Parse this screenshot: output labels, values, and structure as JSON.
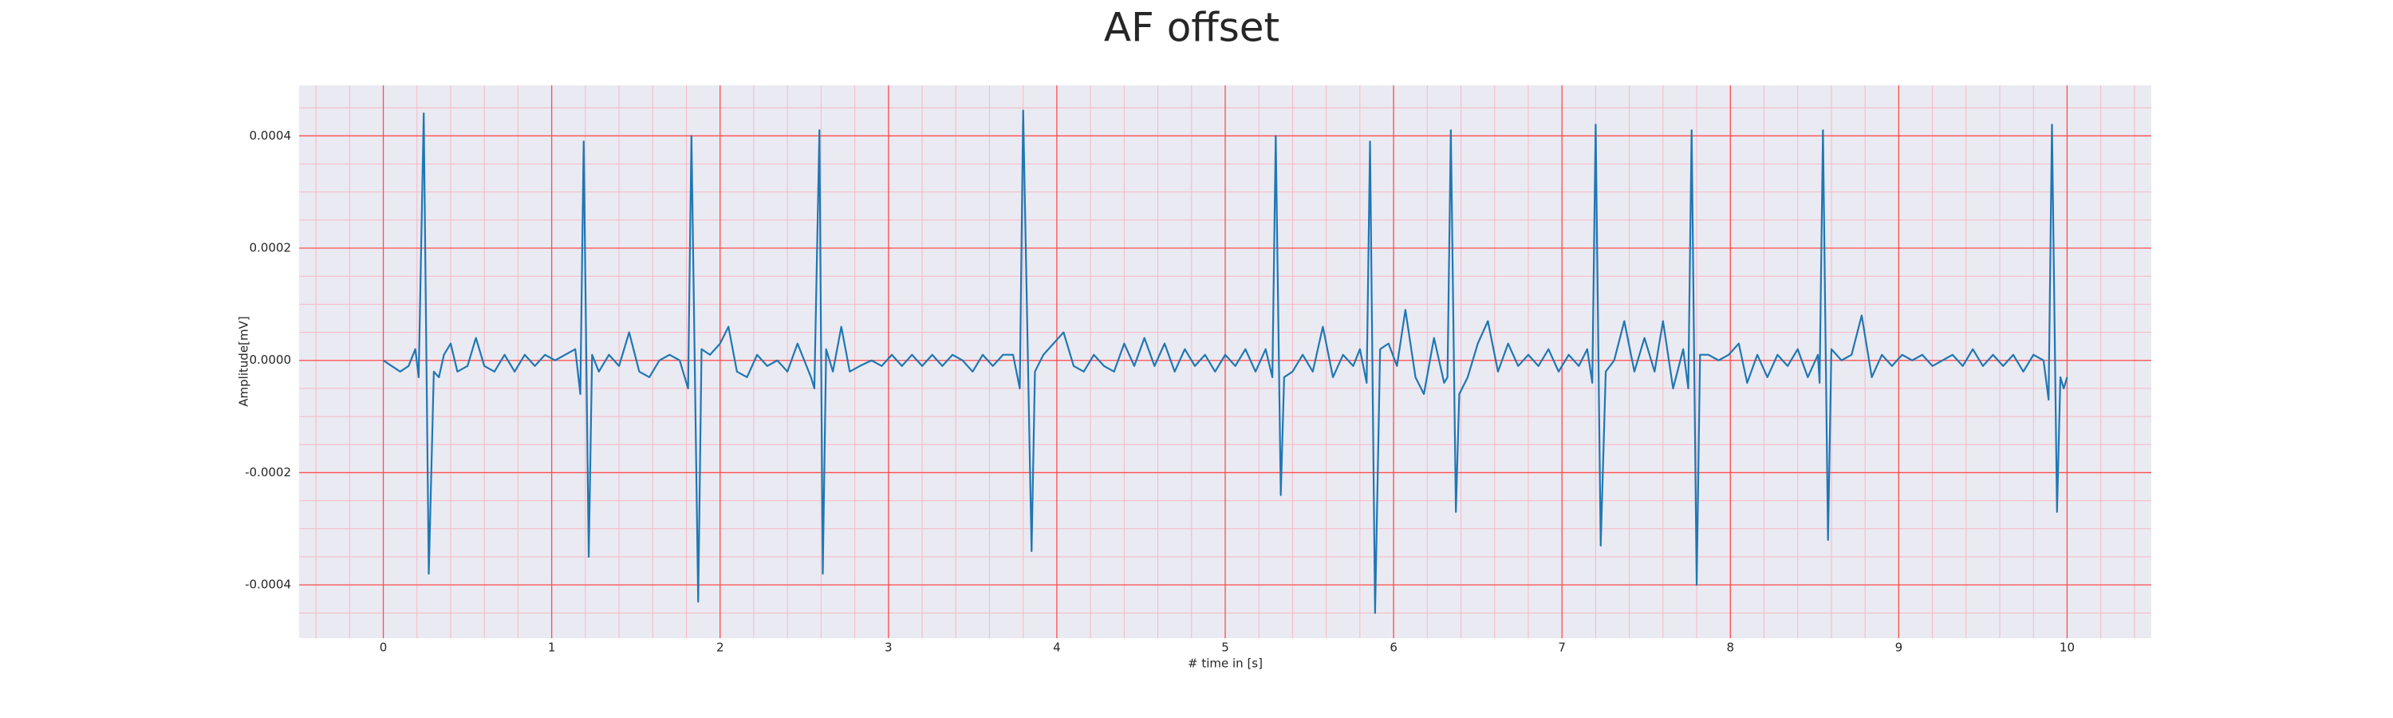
{
  "chart_data": {
    "type": "line",
    "title": "AF offset",
    "xlabel": "# time in [s]",
    "ylabel": "Amplitude[mV]",
    "color": "#1f77b4",
    "background": "#eaeaf2",
    "grid": true,
    "grid_color": "#ff4d4d",
    "minor_grid_color": "#f7b8c4",
    "xlim": [
      -0.5,
      10.5
    ],
    "ylim": [
      -0.000495,
      0.00049
    ],
    "xticks": [
      0,
      1,
      2,
      3,
      4,
      5,
      6,
      7,
      8,
      9,
      10
    ],
    "yticks": [
      -0.0004,
      -0.0002,
      {
        "value": 0,
        "label": "0.0000"
      },
      0.0002,
      0.0004
    ],
    "minor_xticks": [
      -0.4,
      -0.2,
      0,
      0.2,
      0.4,
      0.6,
      0.8,
      1,
      1.2,
      1.4,
      1.6,
      1.8,
      2,
      2.2,
      2.4,
      2.6,
      2.8,
      3,
      3.2,
      3.4,
      3.6,
      3.8,
      4,
      4.2,
      4.4,
      4.6,
      4.8,
      5,
      5.2,
      5.4,
      5.6,
      5.8,
      6,
      6.2,
      6.4,
      6.6,
      6.8,
      7,
      7.2,
      7.4,
      7.6,
      7.8,
      8,
      8.2,
      8.4,
      8.6,
      8.8,
      9,
      9.2,
      9.4,
      9.6,
      9.8,
      10,
      10.2,
      10.4
    ],
    "minor_yticks": [
      -0.00045,
      -0.0004,
      -0.00035,
      -0.0003,
      -0.00025,
      -0.0002,
      -0.00015,
      -0.0001,
      -5e-05,
      0,
      5e-05,
      0.0001,
      0.00015,
      0.0002,
      0.00025,
      0.0003,
      0.00035,
      0.0004,
      0.00045
    ],
    "x": [
      0.0,
      0.05,
      0.1,
      0.15,
      0.19,
      0.21,
      0.24,
      0.27,
      0.3,
      0.33,
      0.36,
      0.4,
      0.44,
      0.5,
      0.55,
      0.6,
      0.66,
      0.72,
      0.78,
      0.84,
      0.9,
      0.96,
      1.02,
      1.08,
      1.14,
      1.17,
      1.19,
      1.22,
      1.24,
      1.28,
      1.34,
      1.4,
      1.46,
      1.52,
      1.58,
      1.64,
      1.7,
      1.76,
      1.81,
      1.83,
      1.87,
      1.89,
      1.94,
      2.0,
      2.05,
      2.1,
      2.16,
      2.22,
      2.28,
      2.34,
      2.4,
      2.46,
      2.5,
      2.54,
      2.56,
      2.59,
      2.61,
      2.63,
      2.67,
      2.72,
      2.77,
      2.83,
      2.9,
      2.96,
      3.02,
      3.08,
      3.14,
      3.2,
      3.26,
      3.32,
      3.38,
      3.44,
      3.5,
      3.56,
      3.62,
      3.68,
      3.74,
      3.78,
      3.8,
      3.85,
      3.87,
      3.92,
      3.98,
      4.04,
      4.1,
      4.16,
      4.22,
      4.28,
      4.34,
      4.4,
      4.46,
      4.52,
      4.58,
      4.64,
      4.7,
      4.76,
      4.82,
      4.88,
      4.94,
      5.0,
      5.06,
      5.12,
      5.18,
      5.24,
      5.28,
      5.3,
      5.33,
      5.35,
      5.4,
      5.46,
      5.52,
      5.58,
      5.64,
      5.7,
      5.76,
      5.8,
      5.84,
      5.86,
      5.89,
      5.92,
      5.97,
      6.02,
      6.07,
      6.13,
      6.18,
      6.24,
      6.3,
      6.32,
      6.34,
      6.37,
      6.39,
      6.44,
      6.5,
      6.56,
      6.62,
      6.68,
      6.74,
      6.8,
      6.86,
      6.92,
      6.98,
      7.04,
      7.1,
      7.15,
      7.18,
      7.2,
      7.23,
      7.26,
      7.31,
      7.37,
      7.43,
      7.49,
      7.55,
      7.6,
      7.66,
      7.72,
      7.75,
      7.77,
      7.8,
      7.82,
      7.87,
      7.93,
      7.99,
      8.05,
      8.1,
      8.16,
      8.22,
      8.28,
      8.34,
      8.4,
      8.46,
      8.52,
      8.53,
      8.55,
      8.58,
      8.6,
      8.66,
      8.72,
      8.78,
      8.84,
      8.9,
      8.96,
      9.02,
      9.08,
      9.14,
      9.2,
      9.26,
      9.32,
      9.38,
      9.44,
      9.5,
      9.56,
      9.62,
      9.68,
      9.74,
      9.8,
      9.86,
      9.89,
      9.91,
      9.94,
      9.96,
      9.98,
      10.0
    ],
    "values": [
      0,
      -1e-05,
      -2e-05,
      -1e-05,
      2e-05,
      -3e-05,
      0.00044,
      -0.00038,
      -2e-05,
      -3e-05,
      1e-05,
      3e-05,
      -2e-05,
      -1e-05,
      4e-05,
      -1e-05,
      -2e-05,
      1e-05,
      -2e-05,
      1e-05,
      -1e-05,
      1e-05,
      0,
      1e-05,
      2e-05,
      -6e-05,
      0.00039,
      -0.00035,
      1e-05,
      -2e-05,
      1e-05,
      -1e-05,
      5e-05,
      -2e-05,
      -3e-05,
      0,
      1e-05,
      0,
      -5e-05,
      0.0004,
      -0.00043,
      2e-05,
      1e-05,
      3e-05,
      6e-05,
      -2e-05,
      -3e-05,
      1e-05,
      -1e-05,
      0,
      -2e-05,
      3e-05,
      0,
      -3e-05,
      -5e-05,
      0.00041,
      -0.00038,
      2e-05,
      -2e-05,
      6e-05,
      -2e-05,
      -1e-05,
      0,
      -1e-05,
      1e-05,
      -1e-05,
      1e-05,
      -1e-05,
      1e-05,
      -1e-05,
      1e-05,
      0,
      -2e-05,
      1e-05,
      -1e-05,
      1e-05,
      1e-05,
      -5e-05,
      0.000445,
      -0.00034,
      -2e-05,
      1e-05,
      3e-05,
      5e-05,
      -1e-05,
      -2e-05,
      1e-05,
      -1e-05,
      -2e-05,
      3e-05,
      -1e-05,
      4e-05,
      -1e-05,
      3e-05,
      -2e-05,
      2e-05,
      -1e-05,
      1e-05,
      -2e-05,
      1e-05,
      -1e-05,
      2e-05,
      -2e-05,
      2e-05,
      -3e-05,
      0.0004,
      -0.00024,
      -3e-05,
      -2e-05,
      1e-05,
      -2e-05,
      6e-05,
      -3e-05,
      1e-05,
      -1e-05,
      2e-05,
      -4e-05,
      0.00039,
      -0.00045,
      2e-05,
      3e-05,
      -1e-05,
      9e-05,
      -3e-05,
      -6e-05,
      4e-05,
      -4e-05,
      -3e-05,
      0.00041,
      -0.00027,
      -6e-05,
      -3e-05,
      3e-05,
      7e-05,
      -2e-05,
      3e-05,
      -1e-05,
      1e-05,
      -1e-05,
      2e-05,
      -2e-05,
      1e-05,
      -1e-05,
      2e-05,
      -4e-05,
      0.00042,
      -0.00033,
      -2e-05,
      0,
      7e-05,
      -2e-05,
      4e-05,
      -2e-05,
      7e-05,
      -5e-05,
      2e-05,
      -5e-05,
      0.00041,
      -0.0004,
      1e-05,
      1e-05,
      0,
      1e-05,
      3e-05,
      -4e-05,
      1e-05,
      -3e-05,
      1e-05,
      -1e-05,
      2e-05,
      -3e-05,
      1e-05,
      -4e-05,
      0.00041,
      -0.00032,
      2e-05,
      0,
      1e-05,
      8e-05,
      -3e-05,
      1e-05,
      -1e-05,
      1e-05,
      0,
      1e-05,
      -1e-05,
      0,
      1e-05,
      -1e-05,
      2e-05,
      -1e-05,
      1e-05,
      -1e-05,
      1e-05,
      -2e-05,
      1e-05,
      0,
      -7e-05,
      0.00042,
      -0.00027,
      -3e-05,
      -5e-05,
      -3e-05
    ]
  }
}
